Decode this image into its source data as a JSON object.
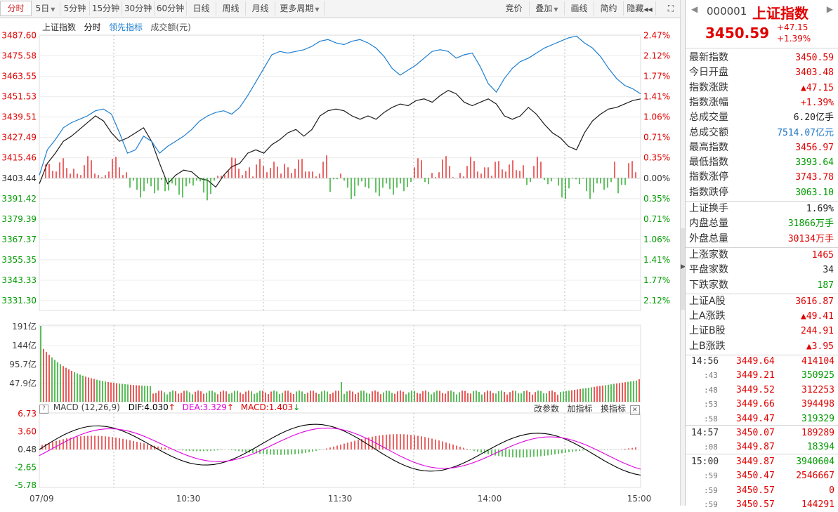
{
  "toolbar": {
    "left": [
      {
        "label": "分时",
        "active": true,
        "caret": false
      },
      {
        "label": "5日",
        "active": false,
        "caret": true
      },
      {
        "label": "5分钟",
        "active": false,
        "caret": false
      },
      {
        "label": "15分钟",
        "active": false,
        "caret": false
      },
      {
        "label": "30分钟",
        "active": false,
        "caret": false
      },
      {
        "label": "60分钟",
        "active": false,
        "caret": false
      },
      {
        "label": "日线",
        "active": false,
        "caret": false
      },
      {
        "label": "周线",
        "active": false,
        "caret": false
      },
      {
        "label": "月线",
        "active": false,
        "caret": false
      },
      {
        "label": "更多周期",
        "active": false,
        "caret": true
      }
    ],
    "right": [
      {
        "label": "竞价",
        "caret": false
      },
      {
        "label": "叠加",
        "caret": true
      },
      {
        "label": "画线",
        "caret": false
      },
      {
        "label": "简约",
        "caret": false
      },
      {
        "label": "隐藏",
        "caret": false,
        "suffix": "◀◀"
      }
    ],
    "expand_icon": "expand-icon"
  },
  "legend": {
    "name": "上证指数",
    "period": "分时",
    "lead": "领先指标",
    "volume": "成交额(元)"
  },
  "price_axis": {
    "left": [
      "3487.60",
      "3475.58",
      "3463.55",
      "3451.53",
      "3439.51",
      "3427.49",
      "3415.46",
      "3403.44",
      "3391.42",
      "3379.39",
      "3367.37",
      "3355.35",
      "3343.33",
      "3331.30"
    ],
    "right": [
      "2.47%",
      "2.12%",
      "1.77%",
      "1.41%",
      "1.06%",
      "0.71%",
      "0.35%",
      "0.00%",
      "0.35%",
      "0.71%",
      "1.06%",
      "1.41%",
      "1.77%",
      "2.12%"
    ]
  },
  "volume_axis": [
    "191亿",
    "144亿",
    "95.7亿",
    "47.9亿"
  ],
  "macd_header": {
    "icon_label": "?",
    "label": "MACD (12,26,9)",
    "dif": "DIF:4.030",
    "dea": "DEA:3.329",
    "macd": "MACD:1.403",
    "dif_arrow": "↑",
    "dea_arrow": "↑",
    "macd_arrow": "↓",
    "actions": [
      "改参数",
      "加指标",
      "换指标"
    ],
    "close": "✕"
  },
  "macd_axis": [
    "6.73",
    "3.60",
    "0.48",
    "-2.65",
    "-5.78"
  ],
  "time_axis": [
    "07/09",
    "10:30",
    "11:30",
    "14:00",
    "15:00"
  ],
  "quote": {
    "code": "000001",
    "name": "上证指数",
    "price": "3450.59",
    "change": "+47.15",
    "pct": "+1.39%"
  },
  "stats": [
    {
      "k": "最新指数",
      "v": "3450.59",
      "c": "red"
    },
    {
      "k": "今日开盘",
      "v": "3403.48",
      "c": "red"
    },
    {
      "k": "指数涨跌",
      "v": "▲47.15",
      "c": "red"
    },
    {
      "k": "指数涨幅",
      "v": "+1.39%",
      "c": "red"
    },
    {
      "k": "总成交量",
      "v": "6.20亿手",
      "c": "black"
    },
    {
      "k": "总成交额",
      "v": "7514.07亿元",
      "c": "blue"
    },
    {
      "k": "最高指数",
      "v": "3456.97",
      "c": "red"
    },
    {
      "k": "最低指数",
      "v": "3393.64",
      "c": "green"
    },
    {
      "k": "指数涨停",
      "v": "3743.78",
      "c": "red"
    },
    {
      "k": "指数跌停",
      "v": "3063.10",
      "c": "green"
    }
  ],
  "stats2": [
    {
      "k": "上证换手",
      "v": "1.69%",
      "c": "black"
    },
    {
      "k": "内盘总量",
      "v": "31866万手",
      "c": "green"
    },
    {
      "k": "外盘总量",
      "v": "30134万手",
      "c": "red"
    }
  ],
  "stats3": [
    {
      "k": "上涨家数",
      "v": "1465",
      "c": "red"
    },
    {
      "k": "平盘家数",
      "v": "34",
      "c": "black"
    },
    {
      "k": "下跌家数",
      "v": "187",
      "c": "green"
    }
  ],
  "stats4": [
    {
      "k": "上证A股",
      "v": "3616.87",
      "c": "red"
    },
    {
      "k": "上A涨跌",
      "v": "▲49.41",
      "c": "red"
    },
    {
      "k": "上证B股",
      "v": "244.91",
      "c": "red"
    },
    {
      "k": "上B涨跌",
      "v": "▲3.95",
      "c": "red"
    }
  ],
  "ticks": [
    {
      "t": "14:56",
      "p": "3449.64",
      "v": "414104",
      "vc": "red"
    },
    {
      "t": ":43",
      "p": "3449.21",
      "v": "350925",
      "vc": "green"
    },
    {
      "t": ":48",
      "p": "3449.52",
      "v": "312253",
      "vc": "red"
    },
    {
      "t": ":53",
      "p": "3449.66",
      "v": "394498",
      "vc": "red"
    },
    {
      "t": ":58",
      "p": "3449.47",
      "v": "319329",
      "vc": "green"
    },
    {
      "t": "14:57",
      "p": "3450.07",
      "v": "189289",
      "vc": "red"
    },
    {
      "t": ":08",
      "p": "3449.87",
      "v": "18394",
      "vc": "green"
    },
    {
      "t": "15:00",
      "p": "3449.87",
      "v": "3940604",
      "vc": "green"
    },
    {
      "t": ":59",
      "p": "3450.47",
      "v": "2546667",
      "vc": "red"
    },
    {
      "t": ":59",
      "p": "3450.57",
      "v": "0",
      "vc": "red"
    },
    {
      "t": ":59",
      "p": "3450.57",
      "v": "144291",
      "vc": "red"
    }
  ],
  "colors": {
    "up": "#e00000",
    "down": "#009a00",
    "index_line": "#1a1a1a",
    "lead_line": "#1e7fd0",
    "dif": "#000000",
    "dea": "#e000e0",
    "grid": "#e6e6e6"
  },
  "chart_data": {
    "type": "line",
    "ylim": [
      3331.3,
      3487.6
    ],
    "prev_close": 3403.44,
    "series": [
      {
        "name": "上证指数",
        "values": [
          3400,
          3412,
          3418,
          3425,
          3428,
          3432,
          3436,
          3440,
          3437,
          3430,
          3425,
          3427,
          3430,
          3433,
          3425,
          3412,
          3400,
          3405,
          3408,
          3407,
          3403,
          3402,
          3398,
          3405,
          3410,
          3412,
          3418,
          3420,
          3418,
          3423,
          3426,
          3430,
          3432,
          3428,
          3432,
          3440,
          3443,
          3444,
          3443,
          3440,
          3438,
          3440,
          3438,
          3442,
          3445,
          3447,
          3446,
          3449,
          3450,
          3448,
          3452,
          3455,
          3453,
          3448,
          3446,
          3448,
          3450,
          3447,
          3440,
          3438,
          3440,
          3445,
          3441,
          3435,
          3430,
          3427,
          3422,
          3420,
          3430,
          3437,
          3441,
          3444,
          3445,
          3447,
          3449,
          3450
        ]
      },
      {
        "name": "领先指标",
        "values": [
          3405,
          3420,
          3426,
          3433,
          3436,
          3438,
          3440,
          3443,
          3444,
          3441,
          3430,
          3418,
          3420,
          3428,
          3425,
          3418,
          3422,
          3425,
          3428,
          3432,
          3437,
          3440,
          3442,
          3443,
          3441,
          3445,
          3452,
          3460,
          3468,
          3476,
          3478,
          3477,
          3478,
          3479,
          3481,
          3484,
          3485,
          3483,
          3482,
          3484,
          3485,
          3483,
          3480,
          3475,
          3468,
          3464,
          3467,
          3470,
          3474,
          3478,
          3479,
          3478,
          3474,
          3476,
          3477,
          3469,
          3459,
          3454,
          3462,
          3468,
          3472,
          3474,
          3477,
          3480,
          3482,
          3484,
          3486,
          3487,
          3483,
          3480,
          3475,
          3468,
          3462,
          3458,
          3456,
          3453
        ]
      }
    ]
  }
}
